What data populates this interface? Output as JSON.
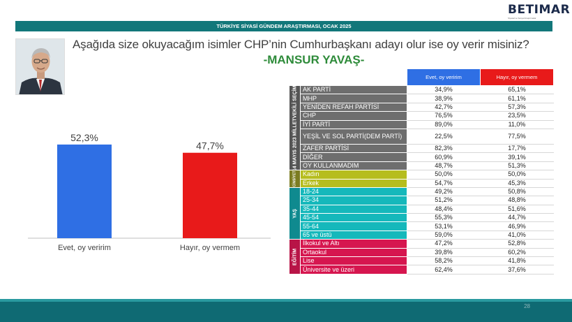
{
  "brand": {
    "logo_text": "BETIMAR",
    "logo_sub": "Siyasal ve Sosyal Araştırmalar"
  },
  "header": {
    "banner": "TÜRKİYE SİYASİ GÜNDEM ARAŞTIRMASI, OCAK 2025"
  },
  "question": "Aşağıda size okuyacağım isimler CHP’nin Cumhurbaşkanı adayı olur ise oy verir misiniz?",
  "candidate": "-MANSUR YAVAŞ-",
  "page_number": "28",
  "colors": {
    "yes": "#2f6fe4",
    "no": "#e81a1a",
    "banner": "#12777a"
  },
  "chart_data": [
    {
      "type": "bar",
      "categories": [
        "Evet, oy veririm",
        "Hayır, oy vermem"
      ],
      "values": [
        52.3,
        47.7
      ],
      "value_labels": [
        "52,3%",
        "47,7%"
      ],
      "colors": [
        "#2f6fe4",
        "#e81a1a"
      ],
      "ylim": [
        0,
        60
      ],
      "grid": false
    },
    {
      "type": "table",
      "columns": [
        "Evet, oy veririm",
        "Hayır, oy vermem"
      ],
      "groups": [
        {
          "name": "14 MAYIS 2023 MİLLETVEKİLİ SEÇİMİ",
          "key": "milli",
          "rows": [
            {
              "label": "AK PARTİ",
              "yes": "34,9%",
              "no": "65,1%"
            },
            {
              "label": "MHP",
              "yes": "38,9%",
              "no": "61,1%"
            },
            {
              "label": "YENİDEN REFAH PARTİSİ",
              "yes": "42,7%",
              "no": "57,3%"
            },
            {
              "label": "CHP",
              "yes": "76,5%",
              "no": "23,5%"
            },
            {
              "label": "İYİ PARTİ",
              "yes": "89,0%",
              "no": "11,0%"
            },
            {
              "label": "YEŞİL VE SOL PARTİ(DEM PARTİ)",
              "yes": "22,5%",
              "no": "77,5%"
            },
            {
              "label": "ZAFER PARTİSİ",
              "yes": "82,3%",
              "no": "17,7%"
            },
            {
              "label": "DİĞER",
              "yes": "60,9%",
              "no": "39,1%"
            },
            {
              "label": "OY KULLANMADIM",
              "yes": "48,7%",
              "no": "51,3%"
            }
          ]
        },
        {
          "name": "CİNSİYET",
          "key": "cins",
          "rows": [
            {
              "label": "Kadın",
              "yes": "50,0%",
              "no": "50,0%"
            },
            {
              "label": "Erkek",
              "yes": "54,7%",
              "no": "45,3%"
            }
          ]
        },
        {
          "name": "YAŞ",
          "key": "yas",
          "rows": [
            {
              "label": "18-24",
              "yes": "49,2%",
              "no": "50,8%"
            },
            {
              "label": "25-34",
              "yes": "51,2%",
              "no": "48,8%"
            },
            {
              "label": "35-44",
              "yes": "48,4%",
              "no": "51,6%"
            },
            {
              "label": "45-54",
              "yes": "55,3%",
              "no": "44,7%"
            },
            {
              "label": "55-64",
              "yes": "53,1%",
              "no": "46,9%"
            },
            {
              "label": "65 ve üstü",
              "yes": "59,0%",
              "no": "41,0%"
            }
          ]
        },
        {
          "name": "EĞİTİM",
          "key": "egit",
          "rows": [
            {
              "label": "İlkokul ve Altı",
              "yes": "47,2%",
              "no": "52,8%"
            },
            {
              "label": "Ortaokul",
              "yes": "39,8%",
              "no": "60,2%"
            },
            {
              "label": "Lise",
              "yes": "58,2%",
              "no": "41,8%"
            },
            {
              "label": "Üniversite ve üzeri",
              "yes": "62,4%",
              "no": "37,6%"
            }
          ]
        }
      ]
    }
  ]
}
